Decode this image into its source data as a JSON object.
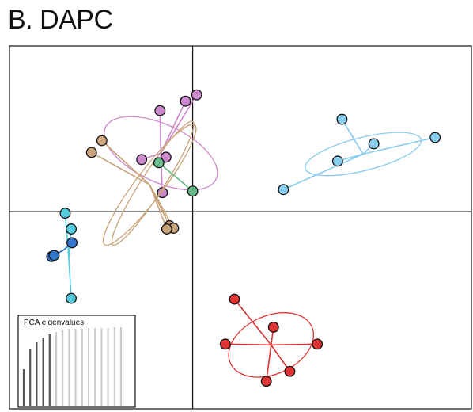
{
  "title": "B. DAPC",
  "chart_data": {
    "type": "scatter",
    "title": "B. DAPC",
    "xlabel": "",
    "ylabel": "",
    "xlim": [
      -4.6,
      7.0
    ],
    "ylim": [
      -5.0,
      4.2
    ],
    "axes_lines": {
      "x": 0,
      "y": 0
    },
    "grid": false,
    "series": [
      {
        "color": "#cc88cc",
        "centroid": [
          -0.8,
          1.48
        ],
        "ellipse": {
          "rx": 0.72,
          "ry": 1.55,
          "angle_deg": -65
        },
        "points": [
          [
            -0.82,
            2.56
          ],
          [
            -0.18,
            2.8
          ],
          [
            0.1,
            2.96
          ],
          [
            -1.28,
            1.32
          ],
          [
            -0.67,
            1.38
          ],
          [
            -0.76,
            0.48
          ]
        ]
      },
      {
        "color": "#c9a47a",
        "centroid": [
          -1.08,
          0.68
        ],
        "ellipse": {
          "rx": 0.35,
          "ry": 1.9,
          "angle_deg": 37
        },
        "points": [
          [
            -2.28,
            1.8
          ],
          [
            -2.54,
            1.5
          ],
          [
            -0.58,
            -0.36
          ],
          [
            -0.48,
            -0.42
          ],
          [
            -0.65,
            -0.44
          ]
        ]
      },
      {
        "color": "#66bb88",
        "centroid": [
          -0.85,
          1.24
        ],
        "points": [
          [
            -0.85,
            1.24
          ],
          [
            0.0,
            0.52
          ]
        ]
      },
      {
        "color": "#88ccee",
        "centroid": [
          4.28,
          1.46
        ],
        "ellipse": {
          "rx": 1.5,
          "ry": 0.42,
          "angle_deg": -14
        },
        "points": [
          [
            3.75,
            2.34
          ],
          [
            4.55,
            1.72
          ],
          [
            3.64,
            1.28
          ],
          [
            6.09,
            1.88
          ],
          [
            2.28,
            0.56
          ]
        ]
      },
      {
        "color": "#55ccdd",
        "centroid": [
          -3.11,
          -1.2
        ],
        "points": [
          [
            -3.2,
            -0.04
          ],
          [
            -3.05,
            -0.44
          ],
          [
            -3.05,
            -2.2
          ]
        ]
      },
      {
        "color": "#3377cc",
        "centroid": [
          -3.25,
          -0.98
        ],
        "points": [
          [
            -3.03,
            -0.79
          ],
          [
            -3.54,
            -1.14
          ],
          [
            -3.48,
            -1.11
          ]
        ]
      },
      {
        "color": "#dd3333",
        "centroid": [
          1.97,
          -3.38
        ],
        "ellipse": {
          "rx": 1.12,
          "ry": 0.74,
          "angle_deg": -24
        },
        "points": [
          [
            1.05,
            -2.22
          ],
          [
            2.03,
            -2.93
          ],
          [
            0.82,
            -3.36
          ],
          [
            3.13,
            -3.36
          ],
          [
            2.44,
            -4.05
          ],
          [
            1.85,
            -4.3
          ]
        ]
      }
    ]
  },
  "inset": {
    "title": "PCA eigenvalues",
    "values": [
      0.46,
      0.72,
      0.8,
      0.86,
      0.9,
      0.93,
      0.95,
      0.97,
      0.97,
      0.97,
      0.98,
      0.98,
      0.98,
      0.98,
      0.99,
      0.99
    ],
    "retained": 5
  }
}
